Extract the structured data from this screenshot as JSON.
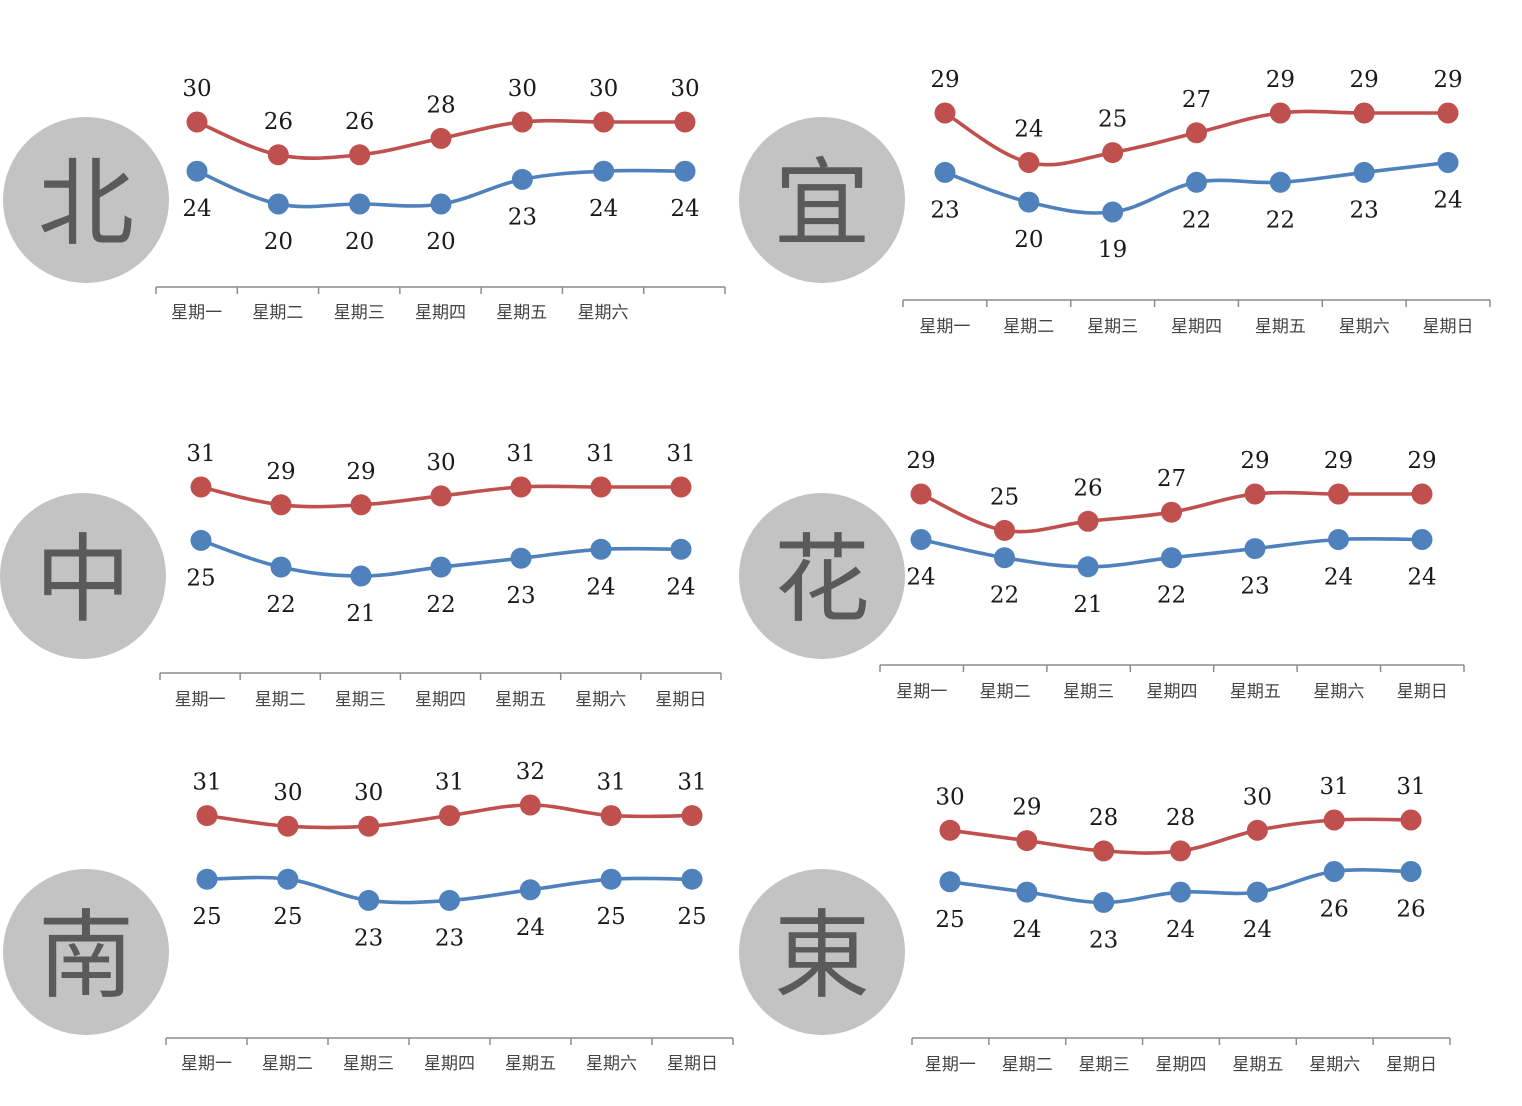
{
  "chart_data": [
    {
      "type": "line",
      "region_label": "北",
      "categories": [
        "星期一",
        "星期二",
        "星期三",
        "星期四",
        "星期五",
        "星期六",
        ""
      ],
      "series": [
        {
          "values": [
            30,
            26,
            26,
            28,
            30,
            30,
            30
          ],
          "color": "#c0504d"
        },
        {
          "values": [
            24,
            20,
            20,
            20,
            23,
            24,
            24
          ],
          "color": "#4f81bd"
        }
      ],
      "grid": false
    },
    {
      "type": "line",
      "region_label": "宜",
      "categories": [
        "星期一",
        "星期二",
        "星期三",
        "星期四",
        "星期五",
        "星期六",
        "星期日"
      ],
      "series": [
        {
          "values": [
            29,
            24,
            25,
            27,
            29,
            29,
            29
          ],
          "color": "#c0504d"
        },
        {
          "values": [
            23,
            20,
            19,
            22,
            22,
            23,
            24
          ],
          "color": "#4f81bd"
        }
      ],
      "grid": false
    },
    {
      "type": "line",
      "region_label": "中",
      "categories": [
        "星期一",
        "星期二",
        "星期三",
        "星期四",
        "星期五",
        "星期六",
        "星期日"
      ],
      "series": [
        {
          "values": [
            31,
            29,
            29,
            30,
            31,
            31,
            31
          ],
          "color": "#c0504d"
        },
        {
          "values": [
            25,
            22,
            21,
            22,
            23,
            24,
            24
          ],
          "color": "#4f81bd"
        }
      ],
      "grid": false
    },
    {
      "type": "line",
      "region_label": "花",
      "categories": [
        "星期一",
        "星期二",
        "星期三",
        "星期四",
        "星期五",
        "星期六",
        "星期日"
      ],
      "series": [
        {
          "values": [
            29,
            25,
            26,
            27,
            29,
            29,
            29
          ],
          "color": "#c0504d"
        },
        {
          "values": [
            24,
            22,
            21,
            22,
            23,
            24,
            24
          ],
          "color": "#4f81bd"
        }
      ],
      "grid": false
    },
    {
      "type": "line",
      "region_label": "南",
      "categories": [
        "星期一",
        "星期二",
        "星期三",
        "星期四",
        "星期五",
        "星期六",
        "星期日"
      ],
      "series": [
        {
          "values": [
            31,
            30,
            30,
            31,
            32,
            31,
            31
          ],
          "color": "#c0504d"
        },
        {
          "values": [
            25,
            25,
            23,
            23,
            24,
            25,
            25
          ],
          "color": "#4f81bd"
        }
      ],
      "grid": false
    },
    {
      "type": "line",
      "region_label": "東",
      "categories": [
        "星期一",
        "星期二",
        "星期三",
        "星期四",
        "星期五",
        "星期六",
        "星期日"
      ],
      "series": [
        {
          "values": [
            30,
            29,
            28,
            28,
            30,
            31,
            31
          ],
          "color": "#c0504d"
        },
        {
          "values": [
            25,
            24,
            23,
            24,
            24,
            26,
            26
          ],
          "color": "#4f81bd"
        }
      ],
      "grid": false
    }
  ]
}
